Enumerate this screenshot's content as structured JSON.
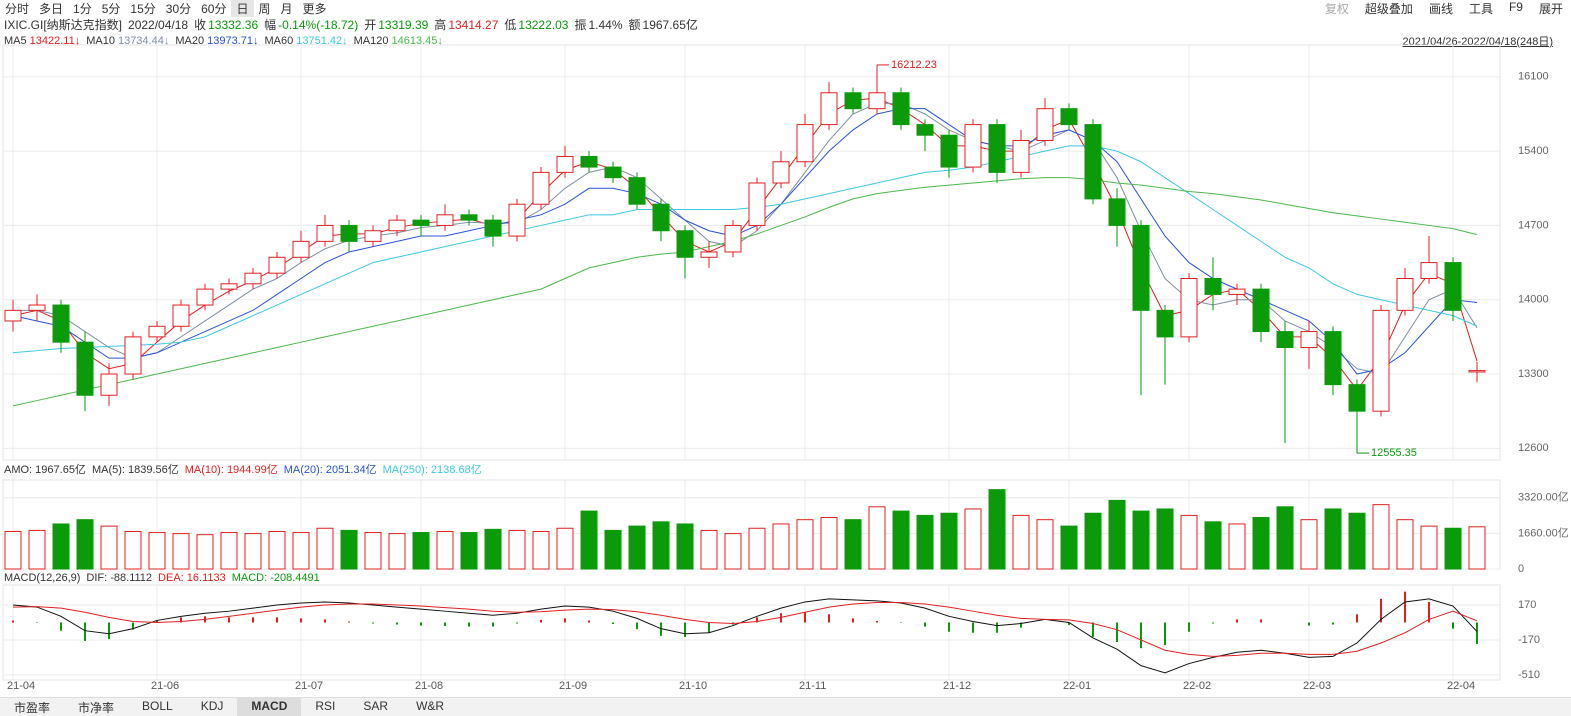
{
  "toolbar": {
    "tabs": [
      "分时",
      "多日",
      "1分",
      "5分",
      "15分",
      "30分",
      "60分",
      "日",
      "周",
      "月",
      "更多"
    ],
    "active": 7,
    "tools": [
      "复权",
      "超级叠加",
      "画线",
      "工具",
      "F9",
      "展开"
    ]
  },
  "info": {
    "symbol": "IXIC.GI[纳斯达克指数]",
    "date": "2022/04/18",
    "items": [
      {
        "label": "收",
        "value": "13332.36",
        "color": "#0a9a0a"
      },
      {
        "label": "幅",
        "value": "-0.14%(-18.72)",
        "color": "#0a9a0a"
      },
      {
        "label": "开",
        "value": "13319.39",
        "color": "#0a9a0a"
      },
      {
        "label": "高",
        "value": "13414.27",
        "color": "#e02020"
      },
      {
        "label": "低",
        "value": "13222.03",
        "color": "#0a9a0a"
      },
      {
        "label": "振",
        "value": "1.44%",
        "color": "#333"
      },
      {
        "label": "额",
        "value": "1967.65亿",
        "color": "#333"
      }
    ],
    "range": "2021/04/26-2022/04/18(248日)"
  },
  "bottom_tabs": {
    "tabs": [
      "市盈率",
      "市净率",
      "BOLL",
      "KDJ",
      "MACD",
      "RSI",
      "SAR",
      "W&R"
    ],
    "active": 4
  },
  "chart_data": [
    {
      "type": "candlestick",
      "categories": [
        "21-04",
        null,
        null,
        null,
        null,
        null,
        "21-06",
        null,
        null,
        null,
        null,
        null,
        "21-07",
        null,
        null,
        null,
        null,
        "21-08",
        null,
        null,
        null,
        null,
        null,
        "21-09",
        null,
        null,
        null,
        null,
        "21-10",
        null,
        null,
        null,
        null,
        "21-11",
        null,
        null,
        null,
        null,
        null,
        "21-12",
        null,
        null,
        null,
        null,
        "22-01",
        null,
        null,
        null,
        null,
        "22-02",
        null,
        null,
        null,
        null,
        "22-03",
        null,
        null,
        null,
        null,
        null,
        "22-04",
        null
      ],
      "open": [
        13800,
        13900,
        13950,
        13600,
        13100,
        13300,
        13650,
        13750,
        13950,
        14100,
        14150,
        14250,
        14400,
        14550,
        14700,
        14550,
        14650,
        14750,
        14700,
        14800,
        14750,
        14600,
        14900,
        15200,
        15350,
        15250,
        15150,
        14900,
        14650,
        14400,
        14450,
        14700,
        15100,
        15300,
        15650,
        15950,
        15800,
        15950,
        15650,
        15550,
        15250,
        15650,
        15200,
        15500,
        15800,
        15650,
        14950,
        14700,
        13900,
        13650,
        14200,
        14050,
        14100,
        13700,
        13550,
        13700,
        13200,
        12950,
        13900,
        14200,
        14350,
        13319.39
      ],
      "high": [
        14000,
        14050,
        14000,
        13700,
        13400,
        13700,
        13800,
        14000,
        14150,
        14200,
        14300,
        14450,
        14650,
        14800,
        14750,
        14700,
        14800,
        14800,
        14900,
        14850,
        14800,
        14950,
        15250,
        15450,
        15400,
        15300,
        15200,
        14950,
        14700,
        14550,
        14750,
        15150,
        15400,
        15750,
        16050,
        16000,
        16212.23,
        16000,
        15700,
        15600,
        15700,
        15700,
        15600,
        15900,
        15850,
        15700,
        15050,
        14750,
        13950,
        14250,
        14400,
        14150,
        14150,
        13800,
        13800,
        13750,
        13250,
        13950,
        14300,
        14600,
        14400,
        13414.27
      ],
      "low": [
        13700,
        13800,
        13500,
        12950,
        13000,
        13250,
        13600,
        13700,
        13900,
        14050,
        14100,
        14200,
        14350,
        14500,
        14450,
        14500,
        14600,
        14600,
        14650,
        14700,
        14500,
        14550,
        14850,
        15150,
        15200,
        15100,
        14850,
        14550,
        14200,
        14300,
        14400,
        14650,
        15050,
        15250,
        15600,
        15750,
        15750,
        15600,
        15400,
        15150,
        15200,
        15100,
        15150,
        15450,
        15600,
        14900,
        14500,
        13100,
        13200,
        13600,
        13900,
        13950,
        13600,
        12650,
        13350,
        13100,
        12555.35,
        12900,
        13850,
        14150,
        13800,
        13222.03
      ],
      "close": [
        13900,
        13950,
        13600,
        13100,
        13300,
        13650,
        13750,
        13950,
        14100,
        14150,
        14250,
        14400,
        14550,
        14700,
        14550,
        14650,
        14750,
        14700,
        14800,
        14750,
        14600,
        14900,
        15200,
        15350,
        15250,
        15150,
        14900,
        14650,
        14400,
        14450,
        14700,
        15100,
        15300,
        15650,
        15950,
        15800,
        15950,
        15650,
        15550,
        15250,
        15650,
        15200,
        15500,
        15800,
        15650,
        14950,
        14700,
        13900,
        13650,
        14200,
        14050,
        14100,
        13700,
        13550,
        13700,
        13200,
        12950,
        13900,
        14200,
        14350,
        13900,
        13332.36
      ],
      "up_color": "#e02020",
      "down_color": "#0a9a0a",
      "series": [
        {
          "name": "MA5",
          "label": "13422.11↓",
          "color": "#e02020",
          "values": [
            13850,
            13900,
            13800,
            13500,
            13350,
            13400,
            13600,
            13800,
            13950,
            14080,
            14180,
            14300,
            14450,
            14600,
            14620,
            14620,
            14680,
            14720,
            14740,
            14760,
            14700,
            14750,
            15000,
            15220,
            15300,
            15230,
            15050,
            14800,
            14550,
            14450,
            14550,
            14850,
            15150,
            15450,
            15750,
            15880,
            15900,
            15800,
            15650,
            15450,
            15450,
            15400,
            15400,
            15600,
            15700,
            15300,
            14850,
            14300,
            13850,
            13900,
            14050,
            14100,
            13900,
            13650,
            13650,
            13450,
            13150,
            13450,
            13950,
            14250,
            14150,
            13422.11
          ]
        },
        {
          "name": "MA10",
          "label": "13734.44↓",
          "color": "#7f8fa6",
          "values": [
            13900,
            13900,
            13850,
            13700,
            13550,
            13450,
            13500,
            13650,
            13800,
            13950,
            14100,
            14200,
            14350,
            14480,
            14560,
            14600,
            14630,
            14680,
            14700,
            14730,
            14720,
            14720,
            14850,
            15050,
            15200,
            15250,
            15150,
            14950,
            14750,
            14550,
            14500,
            14650,
            14900,
            15200,
            15500,
            15750,
            15850,
            15850,
            15750,
            15600,
            15500,
            15450,
            15400,
            15500,
            15600,
            15500,
            15150,
            14650,
            14200,
            14000,
            13950,
            14000,
            14000,
            13800,
            13700,
            13550,
            13350,
            13300,
            13650,
            14000,
            14100,
            13734.44
          ]
        },
        {
          "name": "MA20",
          "label": "13973.71↓",
          "color": "#2a52d6",
          "values": [
            13850,
            13800,
            13750,
            13600,
            13450,
            13450,
            13500,
            13600,
            13700,
            13800,
            13900,
            14050,
            14200,
            14350,
            14450,
            14500,
            14550,
            14600,
            14600,
            14650,
            14700,
            14750,
            14800,
            14900,
            15050,
            15050,
            15000,
            14900,
            14750,
            14650,
            14600,
            14700,
            14900,
            15150,
            15400,
            15600,
            15750,
            15800,
            15800,
            15650,
            15500,
            15450,
            15450,
            15550,
            15600,
            15500,
            15300,
            14950,
            14600,
            14350,
            14200,
            14100,
            14000,
            13900,
            13800,
            13600,
            13300,
            13350,
            13500,
            13750,
            14000,
            13973.71
          ]
        },
        {
          "name": "MA60",
          "label": "13751.42↓",
          "color": "#3cc8e0",
          "values": [
            13500,
            13520,
            13540,
            13550,
            13560,
            13570,
            13580,
            13600,
            13650,
            13750,
            13850,
            13950,
            14050,
            14150,
            14250,
            14350,
            14400,
            14450,
            14500,
            14550,
            14600,
            14650,
            14700,
            14750,
            14800,
            14800,
            14850,
            14850,
            14850,
            14850,
            14850,
            14870,
            14900,
            14950,
            15000,
            15050,
            15100,
            15150,
            15200,
            15220,
            15250,
            15300,
            15350,
            15400,
            15450,
            15450,
            15400,
            15300,
            15150,
            15000,
            14850,
            14700,
            14550,
            14400,
            14300,
            14150,
            14050,
            14000,
            13950,
            13900,
            13850,
            13751.42
          ]
        },
        {
          "name": "MA120",
          "label": "14613.45↓",
          "color": "#4cb84c",
          "values": [
            13000,
            13050,
            13100,
            13150,
            13200,
            13250,
            13300,
            13350,
            13400,
            13450,
            13500,
            13550,
            13600,
            13650,
            13700,
            13750,
            13800,
            13850,
            13900,
            13950,
            14000,
            14050,
            14100,
            14200,
            14300,
            14350,
            14400,
            14430,
            14450,
            14500,
            14550,
            14620,
            14700,
            14780,
            14870,
            14950,
            15000,
            15030,
            15060,
            15080,
            15100,
            15120,
            15140,
            15150,
            15150,
            15130,
            15100,
            15080,
            15050,
            15020,
            15000,
            14970,
            14940,
            14900,
            14860,
            14820,
            14790,
            14760,
            14730,
            14700,
            14670,
            14613.45
          ]
        }
      ],
      "ylim": [
        12490,
        16400
      ],
      "yticks": [
        12600,
        13300,
        14000,
        14700,
        15400,
        16100
      ],
      "grid": true
    },
    {
      "type": "bar",
      "legend": [
        {
          "text": "AMO: 1967.65亿",
          "color": "#333"
        },
        {
          "text": "MA(5): 1839.56亿",
          "color": "#333"
        },
        {
          "text": "MA(10): 1944.99亿",
          "color": "#e02020"
        },
        {
          "text": "MA(20): 2051.34亿",
          "color": "#2a52d6"
        },
        {
          "text": "MA(250): 2138.68亿",
          "color": "#3cc8e0"
        }
      ],
      "values": [
        1750,
        1800,
        2100,
        2300,
        2000,
        1750,
        1700,
        1650,
        1600,
        1700,
        1650,
        1750,
        1700,
        1900,
        1800,
        1700,
        1650,
        1700,
        1750,
        1700,
        1850,
        1800,
        1750,
        1900,
        2700,
        1800,
        2000,
        2200,
        2100,
        1800,
        1650,
        1900,
        2100,
        2300,
        2400,
        2300,
        2900,
        2700,
        2500,
        2600,
        2800,
        3700,
        2500,
        2300,
        2000,
        2600,
        3200,
        2700,
        2800,
        2500,
        2200,
        2100,
        2400,
        2900,
        2300,
        2800,
        2600,
        3000,
        2300,
        2000,
        1900,
        1967.65
      ],
      "up_color": "#e02020",
      "down_color": "#0a9a0a",
      "ylim": [
        0,
        4150
      ],
      "yticks": [
        0,
        {
          "value": 1660,
          "label": "1660.00亿"
        },
        {
          "value": 3320,
          "label": "3320.00亿"
        }
      ]
    },
    {
      "type": "macd",
      "legend": [
        {
          "text": "MACD(12,26,9)",
          "color": "#333"
        },
        {
          "text": "DIF: -88.1112",
          "color": "#333"
        },
        {
          "text": "DEA: 16.1133",
          "color": "#e02020"
        },
        {
          "text": "MACD: -208.4491",
          "color": "#0a9a0a"
        }
      ],
      "series": [
        {
          "color": "#111",
          "values": [
            170,
            150,
            60,
            -80,
            -110,
            -60,
            20,
            60,
            90,
            110,
            140,
            170,
            190,
            200,
            190,
            170,
            150,
            130,
            110,
            90,
            70,
            90,
            130,
            160,
            150,
            110,
            40,
            -60,
            -110,
            -100,
            -30,
            60,
            140,
            200,
            230,
            220,
            210,
            190,
            140,
            60,
            10,
            -30,
            -10,
            30,
            0,
            -150,
            -260,
            -420,
            -490,
            -400,
            -340,
            -290,
            -270,
            -300,
            -340,
            -330,
            -200,
            30,
            200,
            230,
            160,
            -88.1112
          ]
        },
        {
          "color": "#e02020",
          "values": [
            150,
            155,
            140,
            100,
            50,
            10,
            0,
            10,
            30,
            60,
            90,
            120,
            150,
            170,
            180,
            180,
            170,
            160,
            145,
            130,
            110,
            100,
            105,
            120,
            130,
            125,
            105,
            70,
            30,
            0,
            -10,
            10,
            50,
            100,
            150,
            180,
            195,
            195,
            180,
            150,
            110,
            70,
            40,
            30,
            25,
            -10,
            -70,
            -170,
            -270,
            -310,
            -330,
            -320,
            -300,
            -300,
            -310,
            -310,
            -280,
            -200,
            -100,
            30,
            110,
            16.1133
          ]
        }
      ],
      "values": [
        20,
        -5,
        -80,
        -180,
        -160,
        -70,
        20,
        50,
        60,
        50,
        50,
        50,
        40,
        30,
        10,
        -10,
        -20,
        -30,
        -35,
        -40,
        -40,
        -10,
        25,
        40,
        20,
        -15,
        -65,
        -130,
        -140,
        -100,
        -20,
        50,
        90,
        100,
        80,
        40,
        15,
        -5,
        -40,
        -90,
        -100,
        -100,
        -50,
        0,
        -25,
        -140,
        -190,
        -250,
        -220,
        -90,
        -10,
        30,
        30,
        0,
        -30,
        -20,
        80,
        230,
        300,
        200,
        -60,
        -208.4491
      ],
      "up_color": "#e02020",
      "down_color": "#0a9a0a",
      "ylim": [
        -560,
        365
      ],
      "yticks": [
        170,
        -170,
        -510
      ]
    }
  ]
}
